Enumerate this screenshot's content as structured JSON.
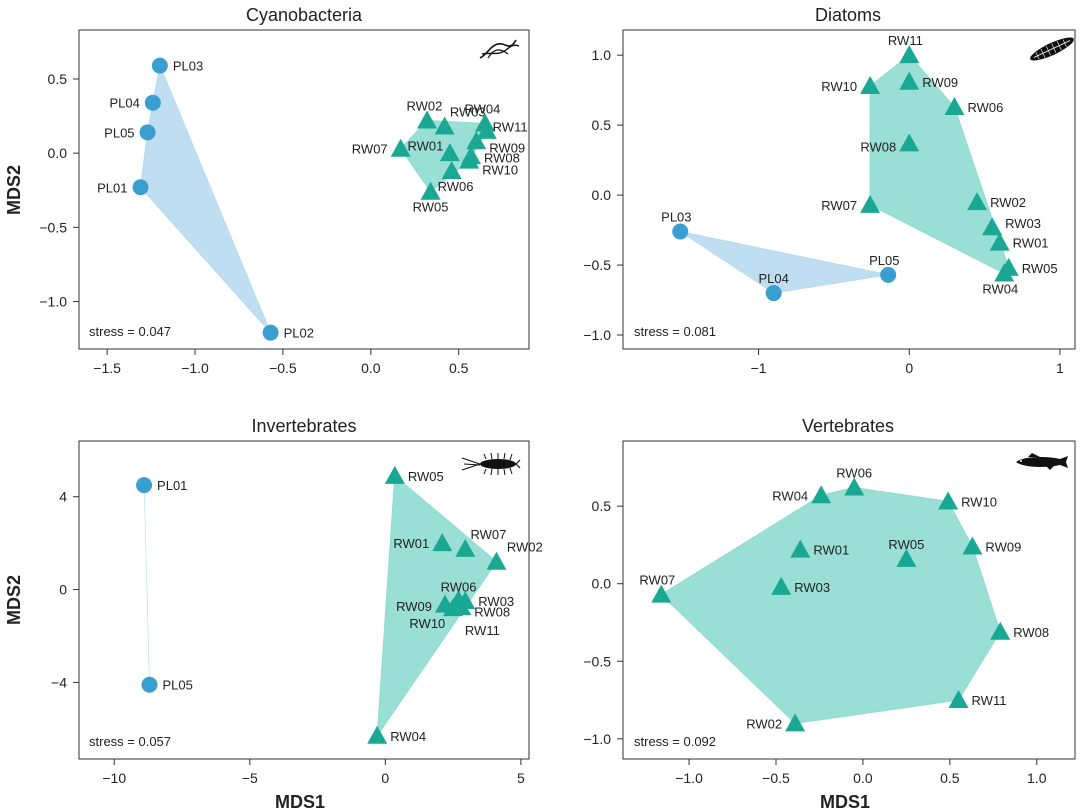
{
  "figure": {
    "xlabel_left": "MDS1",
    "xlabel_right": "MDS1",
    "ylabel_top": "MDS2",
    "ylabel_bottom": "MDS2"
  },
  "colors": {
    "pl_point": "#3a9fd0",
    "pl_hull": "#b9daf0",
    "rw_point": "#1aa894",
    "rw_hull": "#8edcd0",
    "axis": "#333333"
  },
  "chart_data": [
    {
      "type": "scatter",
      "title": "Cyanobacteria",
      "stress": "stress = 0.047",
      "icon": "cyanobacteria-filament-icon",
      "xlim": [
        -1.66,
        0.9
      ],
      "ylim": [
        -1.32,
        0.83
      ],
      "xticks": [
        -1.5,
        -1.0,
        -0.5,
        0.0,
        0.5
      ],
      "xtick_labels": [
        "−1.5",
        "−1.0",
        "−0.5",
        "0.0",
        "0.5"
      ],
      "yticks": [
        -1.0,
        -0.5,
        0.0,
        0.5
      ],
      "ytick_labels": [
        "−1.0",
        "−0.5",
        "0.0",
        "0.5"
      ],
      "series": [
        {
          "name": "PL",
          "marker": "circle",
          "points": [
            {
              "label": "PL03",
              "x": -1.2,
              "y": 0.59,
              "lx": 1,
              "ly": 0
            },
            {
              "label": "PL04",
              "x": -1.24,
              "y": 0.34,
              "lx": -1,
              "ly": 0
            },
            {
              "label": "PL05",
              "x": -1.27,
              "y": 0.14,
              "lx": -1,
              "ly": 0
            },
            {
              "label": "PL01",
              "x": -1.31,
              "y": -0.23,
              "lx": -1,
              "ly": 0
            },
            {
              "label": "PL02",
              "x": -0.57,
              "y": -1.21,
              "lx": 1,
              "ly": 0
            }
          ]
        },
        {
          "name": "RW",
          "marker": "triangle",
          "points": [
            {
              "label": "RW02",
              "x": 0.32,
              "y": 0.22,
              "lx": -0.2,
              "ly": -1
            },
            {
              "label": "RW03",
              "x": 0.42,
              "y": 0.18,
              "lx": 0.4,
              "ly": -1
            },
            {
              "label": "RW04",
              "x": 0.65,
              "y": 0.2,
              "lx": -0.2,
              "ly": -1
            },
            {
              "label": "RW11",
              "x": 0.66,
              "y": 0.15,
              "lx": 0.45,
              "ly": -0.3
            },
            {
              "label": "RW09",
              "x": 0.6,
              "y": 0.08,
              "lx": 1,
              "ly": 0.4
            },
            {
              "label": "RW07",
              "x": 0.17,
              "y": 0.03,
              "lx": -1,
              "ly": 0
            },
            {
              "label": "RW01",
              "x": 0.45,
              "y": 0.0,
              "lx": -0.5,
              "ly": -0.5
            },
            {
              "label": "RW08",
              "x": 0.57,
              "y": -0.02,
              "lx": 1,
              "ly": 0.1
            },
            {
              "label": "RW10",
              "x": 0.56,
              "y": -0.05,
              "lx": 1,
              "ly": 0.6
            },
            {
              "label": "RW06",
              "x": 0.46,
              "y": -0.12,
              "lx": 0.3,
              "ly": 1
            },
            {
              "label": "RW05",
              "x": 0.34,
              "y": -0.26,
              "lx": 0,
              "ly": 1
            }
          ]
        }
      ]
    },
    {
      "type": "scatter",
      "title": "Diatoms",
      "stress": "stress = 0.081",
      "icon": "diatom-cell-icon",
      "xlim": [
        -1.9,
        1.1
      ],
      "ylim": [
        -1.1,
        1.18
      ],
      "xticks": [
        -1,
        0,
        1
      ],
      "xtick_labels": [
        "−1",
        "0",
        "1"
      ],
      "yticks": [
        -1.0,
        -0.5,
        0.0,
        0.5,
        1.0
      ],
      "ytick_labels": [
        "−1.0",
        "−0.5",
        "0.0",
        "0.5",
        "1.0"
      ],
      "series": [
        {
          "name": "PL",
          "marker": "circle",
          "points": [
            {
              "label": "PL03",
              "x": -1.52,
              "y": -0.26,
              "lx": -0.3,
              "ly": -1
            },
            {
              "label": "PL05",
              "x": -0.14,
              "y": -0.57,
              "lx": -0.3,
              "ly": -1
            },
            {
              "label": "PL04",
              "x": -0.9,
              "y": -0.7,
              "lx": 0,
              "ly": -1
            }
          ]
        },
        {
          "name": "RW",
          "marker": "triangle",
          "points": [
            {
              "label": "RW11",
              "x": 0.0,
              "y": 1.0,
              "lx": -0.3,
              "ly": -1
            },
            {
              "label": "RW10",
              "x": -0.26,
              "y": 0.78,
              "lx": -1,
              "ly": 0
            },
            {
              "label": "RW09",
              "x": 0.0,
              "y": 0.81,
              "lx": 1,
              "ly": 0
            },
            {
              "label": "RW06",
              "x": 0.3,
              "y": 0.63,
              "lx": 1,
              "ly": 0
            },
            {
              "label": "RW08",
              "x": 0.0,
              "y": 0.37,
              "lx": -1,
              "ly": 0.2
            },
            {
              "label": "RW07",
              "x": -0.26,
              "y": -0.07,
              "lx": -1,
              "ly": 0
            },
            {
              "label": "RW02",
              "x": 0.45,
              "y": -0.05,
              "lx": 1,
              "ly": 0
            },
            {
              "label": "RW03",
              "x": 0.55,
              "y": -0.23,
              "lx": 1,
              "ly": -0.3
            },
            {
              "label": "RW01",
              "x": 0.6,
              "y": -0.34,
              "lx": 1,
              "ly": 0
            },
            {
              "label": "RW05",
              "x": 0.66,
              "y": -0.52,
              "lx": 1,
              "ly": 0
            },
            {
              "label": "RW04",
              "x": 0.63,
              "y": -0.56,
              "lx": -0.3,
              "ly": 1
            }
          ]
        }
      ]
    },
    {
      "type": "scatter",
      "title": "Invertebrates",
      "stress": "stress = 0.057",
      "icon": "invertebrate-larva-icon",
      "xlim": [
        -11.3,
        5.3
      ],
      "ylim": [
        -7.3,
        6.4
      ],
      "xticks": [
        -10,
        -5,
        0,
        5
      ],
      "xtick_labels": [
        "−10",
        "−5",
        "0",
        "5"
      ],
      "yticks": [
        -4,
        0,
        4
      ],
      "ytick_labels": [
        "−4",
        "0",
        "4"
      ],
      "series": [
        {
          "name": "PL",
          "marker": "circle",
          "points": [
            {
              "label": "PL01",
              "x": -8.9,
              "y": 4.5,
              "lx": 1,
              "ly": 0
            },
            {
              "label": "PL05",
              "x": -8.7,
              "y": -4.1,
              "lx": 1,
              "ly": 0
            }
          ]
        },
        {
          "name": "RW",
          "marker": "triangle",
          "points": [
            {
              "label": "RW05",
              "x": 0.35,
              "y": 4.9,
              "lx": 1,
              "ly": 0
            },
            {
              "label": "RW01",
              "x": 2.1,
              "y": 2.0,
              "lx": -1,
              "ly": 0
            },
            {
              "label": "RW07",
              "x": 2.95,
              "y": 1.75,
              "lx": 0.4,
              "ly": -1
            },
            {
              "label": "RW02",
              "x": 4.1,
              "y": 1.2,
              "lx": 0.8,
              "ly": -1
            },
            {
              "label": "RW06",
              "x": 2.7,
              "y": -0.45,
              "lx": 0,
              "ly": -0.9
            },
            {
              "label": "RW03",
              "x": 2.95,
              "y": -0.5,
              "lx": 1,
              "ly": 0
            },
            {
              "label": "RW09",
              "x": 2.2,
              "y": -0.65,
              "lx": -1,
              "ly": 0.1
            },
            {
              "label": "RW08",
              "x": 2.8,
              "y": -0.75,
              "lx": 1,
              "ly": 0.3
            },
            {
              "label": "RW10",
              "x": 2.5,
              "y": -0.8,
              "lx": -0.6,
              "ly": 1
            },
            {
              "label": "RW11",
              "x": 2.6,
              "y": -0.7,
              "lx": 0.7,
              "ly": 1.6
            },
            {
              "label": "RW04",
              "x": -0.3,
              "y": -6.3,
              "lx": 1,
              "ly": 0
            }
          ]
        }
      ]
    },
    {
      "type": "scatter",
      "title": "Vertebrates",
      "stress": "stress = 0.092",
      "icon": "fish-icon",
      "xlim": [
        -1.38,
        1.22
      ],
      "ylim": [
        -1.13,
        0.92
      ],
      "xticks": [
        -1.0,
        -0.5,
        0.0,
        0.5,
        1.0
      ],
      "xtick_labels": [
        "−1.0",
        "−0.5",
        "0.0",
        "0.5",
        "1.0"
      ],
      "yticks": [
        -1.0,
        -0.5,
        0.0,
        0.5
      ],
      "ytick_labels": [
        "−1.0",
        "−0.5",
        "0.0",
        "0.5"
      ],
      "series": [
        {
          "name": "RW",
          "marker": "triangle",
          "points": [
            {
              "label": "RW06",
              "x": -0.05,
              "y": 0.62,
              "lx": 0,
              "ly": -1
            },
            {
              "label": "RW04",
              "x": -0.24,
              "y": 0.57,
              "lx": -1,
              "ly": 0
            },
            {
              "label": "RW10",
              "x": 0.49,
              "y": 0.53,
              "lx": 1,
              "ly": 0
            },
            {
              "label": "RW01",
              "x": -0.36,
              "y": 0.22,
              "lx": 1,
              "ly": 0
            },
            {
              "label": "RW05",
              "x": 0.25,
              "y": 0.16,
              "lx": 0,
              "ly": -1
            },
            {
              "label": "RW09",
              "x": 0.63,
              "y": 0.24,
              "lx": 1,
              "ly": 0
            },
            {
              "label": "RW03",
              "x": -0.47,
              "y": -0.02,
              "lx": 1,
              "ly": 0
            },
            {
              "label": "RW07",
              "x": -1.16,
              "y": -0.07,
              "lx": -0.3,
              "ly": -1
            },
            {
              "label": "RW08",
              "x": 0.79,
              "y": -0.31,
              "lx": 1,
              "ly": 0
            },
            {
              "label": "RW11",
              "x": 0.55,
              "y": -0.75,
              "lx": 1,
              "ly": 0
            },
            {
              "label": "RW02",
              "x": -0.39,
              "y": -0.9,
              "lx": -1,
              "ly": 0
            }
          ]
        }
      ]
    }
  ]
}
